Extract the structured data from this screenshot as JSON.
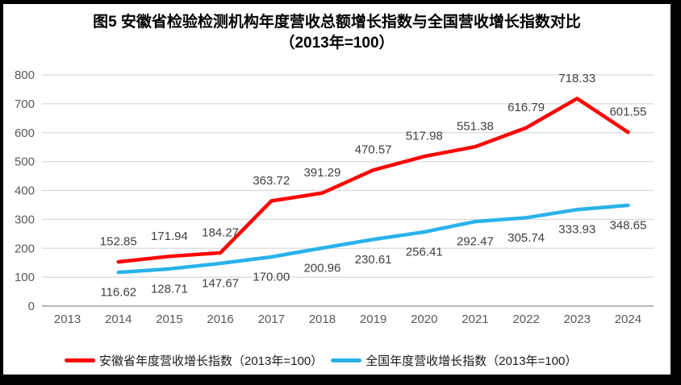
{
  "chart_data": {
    "type": "line",
    "title": "图5  安徽省检验检测机构年度营收总额增长指数与全国营收增长指数对比",
    "subtitle": "（2013年=100）",
    "categories": [
      "2013",
      "2014",
      "2015",
      "2016",
      "2017",
      "2018",
      "2019",
      "2020",
      "2021",
      "2022",
      "2023",
      "2024"
    ],
    "series": [
      {
        "name": "安徽省年度营收增长指数（2013年=100）",
        "color": "#FF0000",
        "label_side": "above",
        "values": [
          null,
          152.85,
          171.94,
          184.27,
          363.72,
          391.29,
          470.57,
          517.98,
          551.38,
          616.79,
          718.33,
          601.55
        ]
      },
      {
        "name": "全国年度营收增长指数（2013年=100）",
        "color": "#29B2EA",
        "label_side": "below",
        "values": [
          null,
          116.62,
          128.71,
          147.67,
          170.0,
          200.96,
          230.61,
          256.41,
          292.47,
          305.74,
          333.93,
          348.65
        ]
      }
    ],
    "ylim": [
      0,
      800
    ],
    "yticks": [
      0,
      100,
      200,
      300,
      400,
      500,
      600,
      700,
      800
    ],
    "grid": true,
    "legend_position": "bottom",
    "colors": {
      "gridline": "#D9D9D9",
      "axis_line": "#ACACAC",
      "tick_label": "#595959",
      "data_label": "#3F3F3F"
    }
  }
}
